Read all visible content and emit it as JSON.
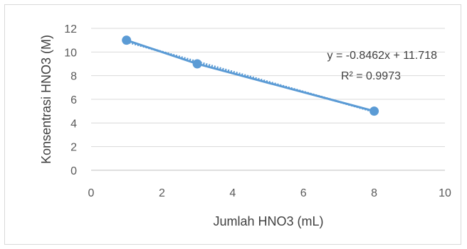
{
  "chart_data": {
    "type": "scatter",
    "xlabel": "Jumlah HNO3 (mL)",
    "ylabel": "Konsentrasi HNO3 (M)",
    "xlim": [
      0,
      10
    ],
    "ylim": [
      0,
      12
    ],
    "xticks": [
      0,
      2,
      4,
      6,
      8,
      10
    ],
    "yticks": [
      0,
      2,
      4,
      6,
      8,
      10,
      12
    ],
    "grid": true,
    "series": [
      {
        "x": [
          1,
          3,
          8
        ],
        "y": [
          11,
          9,
          5
        ],
        "color": "#5b9bd5"
      }
    ],
    "trendline": {
      "type": "linear",
      "slope": -0.8462,
      "intercept": 11.718,
      "equation": "y = -0.8462x + 11.718",
      "r_squared": "R² = 0.9973",
      "color": "#5b9bd5"
    }
  }
}
